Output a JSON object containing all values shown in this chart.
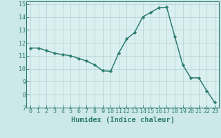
{
  "x": [
    0,
    1,
    2,
    3,
    4,
    5,
    6,
    7,
    8,
    9,
    10,
    11,
    12,
    13,
    14,
    15,
    16,
    17,
    18,
    19,
    20,
    21,
    22,
    23
  ],
  "y": [
    11.6,
    11.6,
    11.4,
    11.2,
    11.1,
    11.0,
    10.8,
    10.6,
    10.3,
    9.85,
    9.8,
    11.2,
    12.3,
    12.8,
    14.0,
    14.35,
    14.7,
    14.75,
    12.5,
    10.3,
    9.3,
    9.3,
    8.3,
    7.4
  ],
  "line_color": "#2e7d6e",
  "marker": "D",
  "marker_size": 2.2,
  "bg_color": "#cce8e8",
  "plot_bg_color": "#daf0f0",
  "grid_color": "#b8d4d4",
  "xlabel": "Humidex (Indice chaleur)",
  "xlim": [
    -0.5,
    23.5
  ],
  "ylim": [
    7,
    15.2
  ],
  "yticks": [
    7,
    8,
    9,
    10,
    11,
    12,
    13,
    14,
    15
  ],
  "xticks": [
    0,
    1,
    2,
    3,
    4,
    5,
    6,
    7,
    8,
    9,
    10,
    11,
    12,
    13,
    14,
    15,
    16,
    17,
    18,
    19,
    20,
    21,
    22,
    23
  ],
  "tick_color": "#2e7d6e",
  "label_color": "#2e7d6e",
  "spine_color": "#2e7d6e",
  "xlabel_fontsize": 7.5,
  "tick_fontsize": 6.0,
  "linewidth": 1.1
}
